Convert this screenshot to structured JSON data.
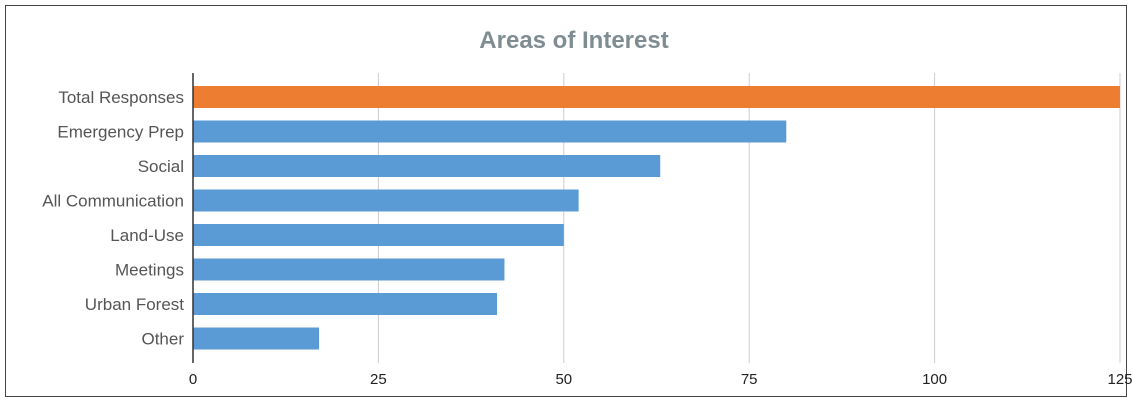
{
  "chart_data": {
    "type": "bar",
    "orientation": "horizontal",
    "title": "Areas of Interest",
    "categories": [
      "Total Responses",
      "Emergency Prep",
      "Social",
      "All Communication",
      "Land-Use",
      "Meetings",
      "Urban Forest",
      "Other"
    ],
    "values": [
      125,
      80,
      63,
      52,
      50,
      42,
      41,
      17
    ],
    "colors": [
      "#ED7D31",
      "#5B9BD5",
      "#5B9BD5",
      "#5B9BD5",
      "#5B9BD5",
      "#5B9BD5",
      "#5B9BD5",
      "#5B9BD5"
    ],
    "xlim": [
      0,
      125
    ],
    "xticks": [
      0,
      25,
      50,
      75,
      100,
      125
    ],
    "grid": "vertical",
    "legend": "none"
  }
}
